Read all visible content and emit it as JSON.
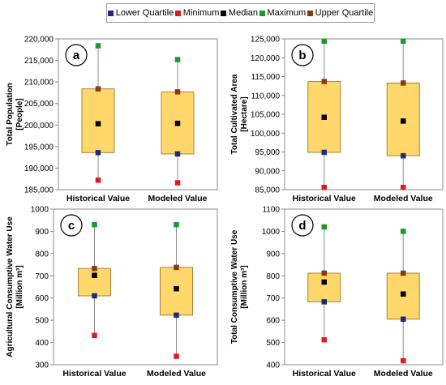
{
  "legend": [
    {
      "label": "Lower Quartile",
      "color": "#1f2a7a"
    },
    {
      "label": "Minimum",
      "color": "#e31a1c"
    },
    {
      "label": "Median",
      "color": "#000000"
    },
    {
      "label": "Maximum",
      "color": "#1a9a2a"
    },
    {
      "label": "Upper Quartile",
      "color": "#8b3a0f"
    }
  ],
  "colors": {
    "box": "#ffd76a",
    "box_edge": "#a6843a",
    "whisker": "#8c8c8c",
    "plot_border": "#8c8c8c"
  },
  "chart_data": [
    {
      "type": "box",
      "panel": "a",
      "title": "",
      "ylabel_lines": [
        "Total Population",
        "[People]"
      ],
      "ylim": [
        185000,
        220000
      ],
      "yticks": [
        185000,
        190000,
        195000,
        200000,
        205000,
        210000,
        215000,
        220000
      ],
      "ytick_labels": [
        "185,000",
        "190,000",
        "195,000",
        "200,000",
        "205,000",
        "210,000",
        "215,000",
        "220,000"
      ],
      "categories": [
        "Historical Value",
        "Modeled Value"
      ],
      "boxes": [
        {
          "min": 187200,
          "lower_quartile": 193600,
          "median": 200300,
          "upper_quartile": 208400,
          "max": 218400
        },
        {
          "min": 186600,
          "lower_quartile": 193300,
          "median": 200400,
          "upper_quartile": 207700,
          "max": 215200
        }
      ]
    },
    {
      "type": "box",
      "panel": "b",
      "title": "",
      "ylabel_lines": [
        "Total Cultivated Area",
        "[Hectare]"
      ],
      "ylim": [
        85000,
        125000
      ],
      "yticks": [
        85000,
        90000,
        95000,
        100000,
        105000,
        110000,
        115000,
        120000,
        125000
      ],
      "ytick_labels": [
        "85,000",
        "90,000",
        "95,000",
        "100,000",
        "105,000",
        "110,000",
        "115,000",
        "120,000",
        "125,000"
      ],
      "categories": [
        "Historical Value",
        "Modeled Value"
      ],
      "boxes": [
        {
          "min": 85600,
          "lower_quartile": 94900,
          "median": 104200,
          "upper_quartile": 113700,
          "max": 124400
        },
        {
          "min": 85600,
          "lower_quartile": 94000,
          "median": 103200,
          "upper_quartile": 113300,
          "max": 124400
        }
      ]
    },
    {
      "type": "box",
      "panel": "c",
      "title": "",
      "ylabel_lines": [
        "Agricultural Consumptive Water Use",
        "[Million m³]"
      ],
      "ylim": [
        300,
        1000
      ],
      "yticks": [
        300,
        400,
        500,
        600,
        700,
        800,
        900,
        1000
      ],
      "ytick_labels": [
        "300",
        "400",
        "500",
        "600",
        "700",
        "800",
        "900",
        "1000"
      ],
      "categories": [
        "Historical Value",
        "Modeled Value"
      ],
      "boxes": [
        {
          "min": 432,
          "lower_quartile": 610,
          "median": 702,
          "upper_quartile": 733,
          "max": 930
        },
        {
          "min": 338,
          "lower_quartile": 523,
          "median": 642,
          "upper_quartile": 738,
          "max": 930
        }
      ]
    },
    {
      "type": "box",
      "panel": "d",
      "title": "",
      "ylabel_lines": [
        "Total Consumptive Water Use",
        "[Million m³]"
      ],
      "ylim": [
        400,
        1100
      ],
      "yticks": [
        400,
        500,
        600,
        700,
        800,
        900,
        1000,
        1100
      ],
      "ytick_labels": [
        "400",
        "500",
        "600",
        "700",
        "800",
        "900",
        "1000",
        "1100"
      ],
      "categories": [
        "Historical Value",
        "Modeled Value"
      ],
      "boxes": [
        {
          "min": 512,
          "lower_quartile": 683,
          "median": 772,
          "upper_quartile": 812,
          "max": 1020
        },
        {
          "min": 418,
          "lower_quartile": 605,
          "median": 718,
          "upper_quartile": 812,
          "max": 1000
        }
      ]
    }
  ]
}
